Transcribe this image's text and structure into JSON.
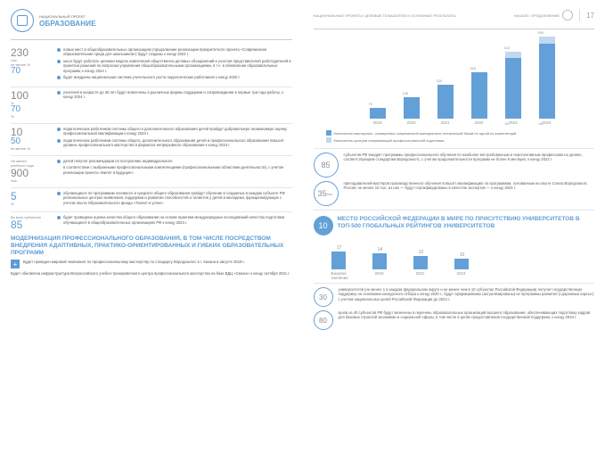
{
  "header": {
    "project_label": "НАЦИОНАЛЬНЫЙ ПРОЕКТ",
    "title": "ОБРАЗОВАНИЕ",
    "top_meta": "НАЦИОНАЛЬНЫЕ ПРОЕКТЫ: ЦЕЛЕВЫЕ ПОКАЗАТЕЛИ И ОСНОВНЫЕ РЕЗУЛЬТАТЫ",
    "nav_label": "НАЧАЛО / ПРОДОЛЖЕНИЕ",
    "page": "17"
  },
  "colors": {
    "accent": "#5b9bd5",
    "bar_light": "#bdd7ee",
    "text_muted": "#888888",
    "rule": "#cccccc"
  },
  "left": {
    "m1": {
      "num": "230",
      "sub_num": "70",
      "sub_unit": "не менее %",
      "unit": "тыс.",
      "b1": "новых мест в общеобразовательных организациях (продолжение реализации приоритетного проекта «Современная образовательная среда для школьников») будут созданы к концу 2024 г.",
      "b2": "школ будут работать целевая модель вовлечения общественно-деловых объединений и участия представителей работодателей в принятии решений по вопросам управления общеобразовательными организациями, в т.ч. в обновление образовательных программ, к концу 2024 г.",
      "b3": "будет внедрена национальная система учительского роста педагогических работников к концу 2020 г."
    },
    "m2": {
      "num": "100",
      "unit": "%",
      "num2": "70",
      "unit2": "%",
      "b1": "учителей в возрасте до 35 лет будут вовлечены в различные формы поддержки и сопровождения в первые три года работы, к концу 2024 г."
    },
    "m3": {
      "num": "10",
      "num2": "50",
      "unit": "не менее %",
      "b1": "педагогических работников системы общего и дополнительного образования детей пройдут добровольную независимую оценку профессиональной квалификации к концу 2024 г.",
      "b2": "педагогических работников системы общего, дополнительного образования детей и профессионального образования повысят уровень профессионального мастерства в форматах непрерывного образования к концу 2024 г."
    },
    "m4": {
      "num": "900",
      "unit": "тыс.",
      "pre": "Не менее",
      "pre2": "учебного года",
      "b1": "детей получат рекомендации по построению индивидуального",
      "b2": "в соответствии с выбранными профессиональными компетенциями (профессиональными областями деятельности), с учетом реализации проекта «Билет в Будущее»"
    },
    "m5": {
      "num": "5",
      "unit": "%",
      "b1": "обучающихся по программам основного и среднего общего образования пройдут обучение в созданных в каждом субъекте РФ региональных центрах выявления, поддержки и развития способностей и талантов у детей и молодежи, функционирующих с учетом опыта Образовательного фонда «Талант и успех»"
    },
    "m6": {
      "num": "85",
      "unit": "Во всех субъектах",
      "b1": "будет проведена оценка качества общего образования на основе практики международных исследований качества подготовки обучающихся в общеобразовательных организациях РФ к концу 2024 г."
    },
    "section_title": "МОДЕРНИЗАЦИЯ ПРОФЕССИОНАЛЬНОГО ОБРАЗОВАНИЯ, В ТОМ ЧИСЛЕ ПОСРЕДСТВОМ ВНЕДРЕНИЯ АДАПТИВНЫХ, ПРАКТИКО-ОРИЕНТИРОВАННЫХ И ГИБКИХ ОБРАЗОВАТЕЛЬНЫХ ПРОГРАММ",
    "tail": "Будет проведен мировой чемпионат по профессиональному мастерству по стандарту Ворлдскиллс в г. Казани в августе 2019 г.",
    "tail2": "Будет обновлена инфраструктура Всероссийского учебно-тренировочного центра профессионального мастерства на базе ВДЦ «Смена» к концу октября 2021 г."
  },
  "chart": {
    "years": [
      "2019",
      "2020",
      "2021",
      "2022",
      "2023",
      "2024"
    ],
    "top_values": [
      70,
      140,
      220,
      310,
      412,
      500
    ],
    "dark_heights": [
      12,
      24,
      38,
      52,
      68,
      84
    ],
    "light_heights": [
      0,
      0,
      0,
      0,
      7,
      8
    ],
    "light_labels": [
      "",
      "",
      "",
      "",
      "51",
      "49"
    ],
    "legend1": "Количество мастерских, оснащенных современной материально-технической базой по одной из компетенций",
    "legend2": "Количество центров опережающей профессиональной подготовки"
  },
  "rings": {
    "r1": {
      "val": "85",
      "sup": "",
      "txt": "субъектов РФ внедрят программы профессионального обучения по наиболее востребованным и перспективным профессиям на уровне, соответствующем стандартам Ворлдскиллс, с учетом продолжительности программ не более 6 месяцев, к концу 2023 г."
    },
    "r2": {
      "val": "35",
      "sup": "тыс.",
      "txt": "преподавателей-мастеров производственного обучения повысят квалификацию по программам, основанным на опыте Союза Ворлдскиллс Россия, не менее 10 тыс. из них — будут сертифицированы в качестве экспертов — к концу 2024 г."
    }
  },
  "rank": {
    "hdr_val": "10",
    "hdr_txt": "МЕСТО РОССИЙСКОЙ ФЕДЕРАЦИИ В МИРЕ ПО ПРИСУТСТВИЮ УНИВЕРСИТЕТОВ В ТОП-500 ГЛОБАЛЬНЫХ РЕЙТИНГОВ УНИВЕРСИТЕТОВ",
    "bars": [
      {
        "h": 20,
        "lbl": "17",
        "yr": "Базовое значение"
      },
      {
        "h": 18,
        "lbl": "14",
        "yr": "2019"
      },
      {
        "h": 15,
        "lbl": "12",
        "yr": "2021"
      },
      {
        "h": 12,
        "lbl": "10",
        "yr": "2024"
      }
    ],
    "b30": {
      "n": "30",
      "t": "университетов (не менее 1 в каждом федеральном округе и не менее чем в 10 субъектах Российской Федерации) получат государственную поддержку на основании конкурсного отбора к концу 2020 г.; будут сформированы (актуализированы) их программы развития («дорожные карты») с учетом национальных целей Российской Федерации до 2024 г."
    },
    "b80": {
      "n": "80",
      "t": "вузов из 40 субъектов РФ будут включены в перечень образовательных организаций высшего образования, обеспечивающих подготовку кадров для базовых отраслей экономики и социальной сферы, в том числе в целях предоставления государственной поддержки, к концу 2019 г."
    }
  }
}
